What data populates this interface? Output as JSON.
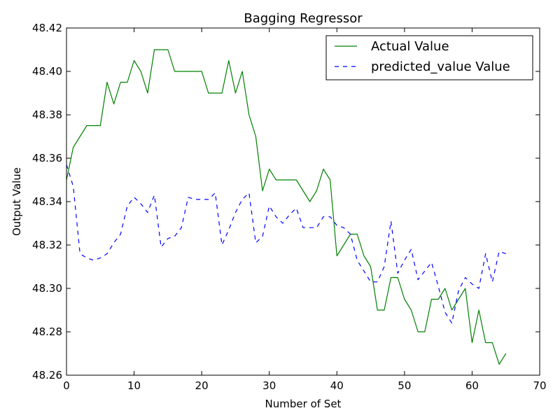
{
  "chart_data": {
    "type": "line",
    "title": "Bagging Regressor",
    "xlabel": "Number of Set",
    "ylabel": "Output Value",
    "xlim": [
      0,
      70
    ],
    "ylim": [
      48.26,
      48.42
    ],
    "xticks": [
      0,
      10,
      20,
      30,
      40,
      50,
      60,
      70
    ],
    "yticks": [
      48.26,
      48.28,
      48.3,
      48.32,
      48.34,
      48.36,
      48.38,
      48.4,
      48.42
    ],
    "xtick_labels": [
      "0",
      "10",
      "20",
      "30",
      "40",
      "50",
      "60",
      "70"
    ],
    "ytick_labels": [
      "48.26",
      "48.28",
      "48.30",
      "48.32",
      "48.34",
      "48.36",
      "48.38",
      "48.40",
      "48.42"
    ],
    "grid": false,
    "legend_position": "top-right",
    "x": [
      0,
      1,
      2,
      3,
      4,
      5,
      6,
      7,
      8,
      9,
      10,
      11,
      12,
      13,
      14,
      15,
      16,
      17,
      18,
      19,
      20,
      21,
      22,
      23,
      24,
      25,
      26,
      27,
      28,
      29,
      30,
      31,
      32,
      33,
      34,
      35,
      36,
      37,
      38,
      39,
      40,
      41,
      42,
      43,
      44,
      45,
      46,
      47,
      48,
      49,
      50,
      51,
      52,
      53,
      54,
      55,
      56,
      57,
      58,
      59,
      60,
      61,
      62,
      63,
      64,
      65
    ],
    "series": [
      {
        "name": "Actual Value",
        "color": "#008000",
        "style": "solid",
        "values": [
          48.35,
          48.365,
          48.37,
          48.375,
          48.375,
          48.375,
          48.395,
          48.385,
          48.395,
          48.395,
          48.405,
          48.4,
          48.39,
          48.41,
          48.41,
          48.41,
          48.4,
          48.4,
          48.4,
          48.4,
          48.4,
          48.39,
          48.39,
          48.39,
          48.405,
          48.39,
          48.4,
          48.38,
          48.37,
          48.345,
          48.355,
          48.35,
          48.35,
          48.35,
          48.35,
          48.345,
          48.34,
          48.345,
          48.355,
          48.35,
          48.315,
          48.32,
          48.325,
          48.325,
          48.315,
          48.31,
          48.29,
          48.29,
          48.305,
          48.305,
          48.295,
          48.29,
          48.28,
          48.28,
          48.295,
          48.295,
          48.3,
          48.29,
          48.295,
          48.3,
          48.275,
          48.29,
          48.275,
          48.275,
          48.265,
          48.27
        ]
      },
      {
        "name": "predicted_value Value",
        "color": "#0000ff",
        "style": "dashed",
        "values": [
          48.357,
          48.347,
          48.316,
          48.314,
          48.313,
          48.314,
          48.316,
          48.321,
          48.325,
          48.338,
          48.342,
          48.339,
          48.335,
          48.343,
          48.319,
          48.323,
          48.324,
          48.328,
          48.342,
          48.341,
          48.341,
          48.341,
          48.344,
          48.32,
          48.327,
          48.335,
          48.341,
          48.344,
          48.321,
          48.324,
          48.338,
          48.333,
          48.33,
          48.334,
          48.337,
          48.328,
          48.328,
          48.328,
          48.333,
          48.333,
          48.329,
          48.328,
          48.325,
          48.313,
          48.308,
          48.303,
          48.303,
          48.31,
          48.331,
          48.307,
          48.313,
          48.318,
          48.304,
          48.308,
          48.312,
          48.301,
          48.289,
          48.284,
          48.299,
          48.305,
          48.302,
          48.3,
          48.316,
          48.303,
          48.317,
          48.316
        ]
      }
    ]
  }
}
